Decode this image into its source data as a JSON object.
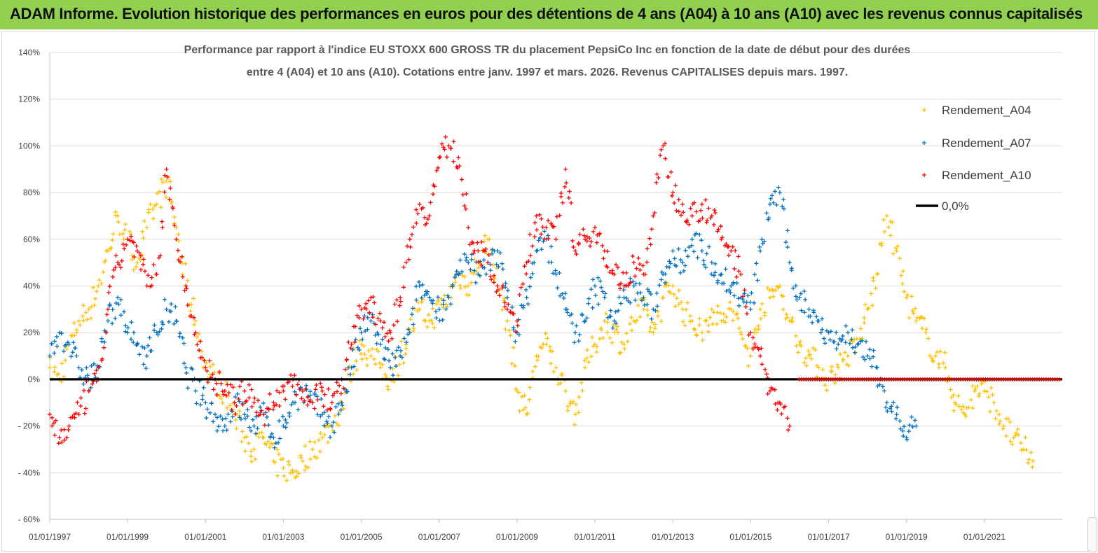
{
  "banner": {
    "title": "ADAM Informe. Evolution historique des performances en euros pour des détentions de 4 ans (A04) à 10 ans (A10) avec les revenus connus capitalisés"
  },
  "chart_data": {
    "type": "scatter",
    "title_line1": "Performance par rapport à l'indice EU STOXX 600 GROSS TR  du placement PepsiCo Inc en fonction de la date de début pour des durées",
    "title_line2": "entre 4 (A04) et 10 ans (A10). Cotations entre janv. 1997 et mars. 2026. Revenus CAPITALISES depuis mars. 1997.",
    "xlabel": "",
    "ylabel": "",
    "xlim": [
      "1997-01-01",
      "2023-01-01"
    ],
    "ylim": [
      -60,
      140
    ],
    "x_tick_labels": [
      "01/01/1997",
      "01/01/1999",
      "01/01/2001",
      "01/01/2003",
      "01/01/2005",
      "01/01/2007",
      "01/01/2009",
      "01/01/2011",
      "01/01/2013",
      "01/01/2015",
      "01/01/2017",
      "01/01/2019",
      "01/01/2021"
    ],
    "y_tick_labels": [
      "- 60%",
      "- 40%",
      "- 20%",
      "0%",
      "20%",
      "40%",
      "60%",
      "80%",
      "100%",
      "120%",
      "140%"
    ],
    "y_ticks": [
      -60,
      -40,
      -20,
      0,
      20,
      40,
      60,
      80,
      100,
      120,
      140
    ],
    "grid": "horizontal",
    "legend_position": "top-right",
    "marker": "+",
    "series": [
      {
        "name": "Rendement_A04",
        "color": "#ffc000",
        "points": [
          [
            "1997-01-01",
            5
          ],
          [
            "1997-04-01",
            0
          ],
          [
            "1997-07-01",
            15
          ],
          [
            "1997-10-01",
            25
          ],
          [
            "1998-01-01",
            30
          ],
          [
            "1998-04-01",
            40
          ],
          [
            "1998-07-01",
            55
          ],
          [
            "1998-10-01",
            70
          ],
          [
            "1999-01-01",
            60
          ],
          [
            "1999-04-01",
            50
          ],
          [
            "1999-07-01",
            65
          ],
          [
            "1999-10-01",
            75
          ],
          [
            "2000-01-01",
            85
          ],
          [
            "2000-04-01",
            65
          ],
          [
            "2000-07-01",
            40
          ],
          [
            "2000-10-01",
            25
          ],
          [
            "2001-01-01",
            5
          ],
          [
            "2001-04-01",
            0
          ],
          [
            "2001-07-01",
            -5
          ],
          [
            "2001-10-01",
            -15
          ],
          [
            "2002-01-01",
            -25
          ],
          [
            "2002-04-01",
            -30
          ],
          [
            "2002-07-01",
            -25
          ],
          [
            "2002-10-01",
            -35
          ],
          [
            "2003-01-01",
            -38
          ],
          [
            "2003-04-01",
            -40
          ],
          [
            "2003-07-01",
            -35
          ],
          [
            "2003-10-01",
            -30
          ],
          [
            "2004-01-01",
            -25
          ],
          [
            "2004-04-01",
            -20
          ],
          [
            "2004-07-01",
            -10
          ],
          [
            "2004-10-01",
            5
          ],
          [
            "2005-01-01",
            15
          ],
          [
            "2005-04-01",
            10
          ],
          [
            "2005-07-01",
            5
          ],
          [
            "2005-10-01",
            0
          ],
          [
            "2006-01-01",
            10
          ],
          [
            "2006-04-01",
            20
          ],
          [
            "2006-07-01",
            30
          ],
          [
            "2006-10-01",
            25
          ],
          [
            "2007-01-01",
            30
          ],
          [
            "2007-04-01",
            35
          ],
          [
            "2007-07-01",
            45
          ],
          [
            "2007-10-01",
            40
          ],
          [
            "2008-01-01",
            50
          ],
          [
            "2008-04-01",
            60
          ],
          [
            "2008-07-01",
            40
          ],
          [
            "2008-10-01",
            25
          ],
          [
            "2009-01-01",
            -5
          ],
          [
            "2009-04-01",
            -15
          ],
          [
            "2009-07-01",
            10
          ],
          [
            "2009-10-01",
            15
          ],
          [
            "2010-01-01",
            5
          ],
          [
            "2010-04-01",
            -5
          ],
          [
            "2010-07-01",
            -15
          ],
          [
            "2010-10-01",
            5
          ],
          [
            "2011-01-01",
            15
          ],
          [
            "2011-04-01",
            25
          ],
          [
            "2011-07-01",
            20
          ],
          [
            "2011-10-01",
            15
          ],
          [
            "2012-01-01",
            25
          ],
          [
            "2012-04-01",
            30
          ],
          [
            "2012-07-01",
            20
          ],
          [
            "2012-10-01",
            35
          ],
          [
            "2013-01-01",
            40
          ],
          [
            "2013-04-01",
            30
          ],
          [
            "2013-07-01",
            25
          ],
          [
            "2013-10-01",
            20
          ],
          [
            "2014-01-01",
            30
          ],
          [
            "2014-04-01",
            25
          ],
          [
            "2014-07-01",
            30
          ],
          [
            "2014-10-01",
            20
          ],
          [
            "2015-01-01",
            10
          ],
          [
            "2015-04-01",
            30
          ],
          [
            "2015-07-01",
            35
          ],
          [
            "2015-10-01",
            40
          ],
          [
            "2016-01-01",
            25
          ],
          [
            "2016-04-01",
            15
          ],
          [
            "2016-07-01",
            10
          ],
          [
            "2016-10-01",
            5
          ],
          [
            "2017-01-01",
            0
          ],
          [
            "2017-04-01",
            5
          ],
          [
            "2017-07-01",
            10
          ],
          [
            "2017-10-01",
            15
          ],
          [
            "2018-01-01",
            30
          ],
          [
            "2018-04-01",
            45
          ],
          [
            "2018-07-01",
            70
          ],
          [
            "2018-10-01",
            55
          ],
          [
            "2019-01-01",
            35
          ],
          [
            "2019-04-01",
            25
          ],
          [
            "2019-07-01",
            20
          ],
          [
            "2019-10-01",
            10
          ],
          [
            "2020-01-01",
            5
          ],
          [
            "2020-04-01",
            -10
          ],
          [
            "2020-07-01",
            -15
          ],
          [
            "2020-10-01",
            -5
          ],
          [
            "2021-01-01",
            -5
          ],
          [
            "2021-04-01",
            -10
          ],
          [
            "2021-07-01",
            -20
          ],
          [
            "2021-10-01",
            -25
          ],
          [
            "2022-01-01",
            -30
          ],
          [
            "2022-04-01",
            -35
          ]
        ]
      },
      {
        "name": "Rendement_A07",
        "color": "#0070c0",
        "points": [
          [
            "1997-01-01",
            10
          ],
          [
            "1997-04-01",
            20
          ],
          [
            "1997-07-01",
            15
          ],
          [
            "1997-10-01",
            5
          ],
          [
            "1998-01-01",
            0
          ],
          [
            "1998-04-01",
            5
          ],
          [
            "1998-07-01",
            25
          ],
          [
            "1998-10-01",
            35
          ],
          [
            "1999-01-01",
            20
          ],
          [
            "1999-04-01",
            15
          ],
          [
            "1999-07-01",
            10
          ],
          [
            "1999-10-01",
            20
          ],
          [
            "2000-01-01",
            30
          ],
          [
            "2000-04-01",
            25
          ],
          [
            "2000-07-01",
            5
          ],
          [
            "2000-10-01",
            -5
          ],
          [
            "2001-01-01",
            -10
          ],
          [
            "2001-04-01",
            -15
          ],
          [
            "2001-07-01",
            -20
          ],
          [
            "2001-10-01",
            -10
          ],
          [
            "2002-01-01",
            -15
          ],
          [
            "2002-04-01",
            -20
          ],
          [
            "2002-07-01",
            -15
          ],
          [
            "2002-10-01",
            -25
          ],
          [
            "2003-01-01",
            -20
          ],
          [
            "2003-04-01",
            -10
          ],
          [
            "2003-07-01",
            -5
          ],
          [
            "2003-10-01",
            -10
          ],
          [
            "2004-01-01",
            -15
          ],
          [
            "2004-04-01",
            -20
          ],
          [
            "2004-07-01",
            -10
          ],
          [
            "2004-10-01",
            5
          ],
          [
            "2005-01-01",
            20
          ],
          [
            "2005-04-01",
            25
          ],
          [
            "2005-07-01",
            15
          ],
          [
            "2005-10-01",
            5
          ],
          [
            "2006-01-01",
            10
          ],
          [
            "2006-04-01",
            20
          ],
          [
            "2006-07-01",
            40
          ],
          [
            "2006-10-01",
            35
          ],
          [
            "2007-01-01",
            30
          ],
          [
            "2007-04-01",
            35
          ],
          [
            "2007-07-01",
            45
          ],
          [
            "2007-10-01",
            50
          ],
          [
            "2008-01-01",
            45
          ],
          [
            "2008-04-01",
            50
          ],
          [
            "2008-07-01",
            55
          ],
          [
            "2008-10-01",
            35
          ],
          [
            "2009-01-01",
            20
          ],
          [
            "2009-04-01",
            35
          ],
          [
            "2009-07-01",
            55
          ],
          [
            "2009-10-01",
            60
          ],
          [
            "2010-01-01",
            45
          ],
          [
            "2010-04-01",
            30
          ],
          [
            "2010-07-01",
            20
          ],
          [
            "2010-10-01",
            25
          ],
          [
            "2011-01-01",
            40
          ],
          [
            "2011-04-01",
            35
          ],
          [
            "2011-07-01",
            25
          ],
          [
            "2011-10-01",
            35
          ],
          [
            "2012-01-01",
            40
          ],
          [
            "2012-04-01",
            35
          ],
          [
            "2012-07-01",
            30
          ],
          [
            "2012-10-01",
            45
          ],
          [
            "2013-01-01",
            55
          ],
          [
            "2013-04-01",
            50
          ],
          [
            "2013-07-01",
            60
          ],
          [
            "2013-10-01",
            55
          ],
          [
            "2014-01-01",
            50
          ],
          [
            "2014-04-01",
            45
          ],
          [
            "2014-07-01",
            40
          ],
          [
            "2014-10-01",
            35
          ],
          [
            "2015-01-01",
            30
          ],
          [
            "2015-04-01",
            55
          ],
          [
            "2015-07-01",
            75
          ],
          [
            "2015-10-01",
            80
          ],
          [
            "2016-01-01",
            50
          ],
          [
            "2016-04-01",
            35
          ],
          [
            "2016-07-01",
            30
          ],
          [
            "2016-10-01",
            25
          ],
          [
            "2017-01-01",
            20
          ],
          [
            "2017-04-01",
            15
          ],
          [
            "2017-07-01",
            20
          ],
          [
            "2017-10-01",
            15
          ],
          [
            "2018-01-01",
            10
          ],
          [
            "2018-04-01",
            5
          ],
          [
            "2018-07-01",
            -10
          ],
          [
            "2018-10-01",
            -15
          ],
          [
            "2019-01-01",
            -25
          ],
          [
            "2019-04-01",
            -20
          ]
        ]
      },
      {
        "name": "Rendement_A10",
        "color": "#ff0000",
        "points": [
          [
            "1997-01-01",
            -15
          ],
          [
            "1997-04-01",
            -25
          ],
          [
            "1997-07-01",
            -20
          ],
          [
            "1997-10-01",
            -15
          ],
          [
            "1998-01-01",
            -5
          ],
          [
            "1998-04-01",
            0
          ],
          [
            "1998-07-01",
            30
          ],
          [
            "1998-10-01",
            50
          ],
          [
            "1999-01-01",
            60
          ],
          [
            "1999-04-01",
            55
          ],
          [
            "1999-07-01",
            40
          ],
          [
            "1999-10-01",
            45
          ],
          [
            "2000-01-01",
            90
          ],
          [
            "2000-04-01",
            60
          ],
          [
            "2000-07-01",
            40
          ],
          [
            "2000-10-01",
            20
          ],
          [
            "2001-01-01",
            5
          ],
          [
            "2001-04-01",
            0
          ],
          [
            "2001-07-01",
            -5
          ],
          [
            "2001-10-01",
            -10
          ],
          [
            "2002-01-01",
            -5
          ],
          [
            "2002-04-01",
            -10
          ],
          [
            "2002-07-01",
            -15
          ],
          [
            "2002-10-01",
            -10
          ],
          [
            "2003-01-01",
            -5
          ],
          [
            "2003-04-01",
            0
          ],
          [
            "2003-07-01",
            -5
          ],
          [
            "2003-10-01",
            -10
          ],
          [
            "2004-01-01",
            -5
          ],
          [
            "2004-04-01",
            -10
          ],
          [
            "2004-07-01",
            0
          ],
          [
            "2004-10-01",
            15
          ],
          [
            "2005-01-01",
            30
          ],
          [
            "2005-04-01",
            35
          ],
          [
            "2005-07-01",
            25
          ],
          [
            "2005-10-01",
            20
          ],
          [
            "2006-01-01",
            35
          ],
          [
            "2006-04-01",
            60
          ],
          [
            "2006-07-01",
            75
          ],
          [
            "2006-10-01",
            70
          ],
          [
            "2007-01-01",
            95
          ],
          [
            "2007-04-01",
            100
          ],
          [
            "2007-07-01",
            95
          ],
          [
            "2007-10-01",
            65
          ],
          [
            "2008-01-01",
            55
          ],
          [
            "2008-04-01",
            50
          ],
          [
            "2008-07-01",
            40
          ],
          [
            "2008-10-01",
            30
          ],
          [
            "2009-01-01",
            25
          ],
          [
            "2009-04-01",
            50
          ],
          [
            "2009-07-01",
            70
          ],
          [
            "2009-10-01",
            65
          ],
          [
            "2010-01-01",
            60
          ],
          [
            "2010-04-01",
            90
          ],
          [
            "2010-07-01",
            55
          ],
          [
            "2010-10-01",
            60
          ],
          [
            "2011-01-01",
            65
          ],
          [
            "2011-04-01",
            55
          ],
          [
            "2011-07-01",
            45
          ],
          [
            "2011-10-01",
            40
          ],
          [
            "2012-01-01",
            50
          ],
          [
            "2012-04-01",
            45
          ],
          [
            "2012-07-01",
            70
          ],
          [
            "2012-10-01",
            100
          ],
          [
            "2013-01-01",
            80
          ],
          [
            "2013-04-01",
            75
          ],
          [
            "2013-07-01",
            70
          ],
          [
            "2013-10-01",
            75
          ],
          [
            "2014-01-01",
            70
          ],
          [
            "2014-04-01",
            60
          ],
          [
            "2014-07-01",
            55
          ],
          [
            "2014-10-01",
            45
          ],
          [
            "2015-01-01",
            20
          ],
          [
            "2015-04-01",
            10
          ],
          [
            "2015-07-01",
            -5
          ],
          [
            "2015-10-01",
            -10
          ],
          [
            "2016-01-01",
            -20
          ]
        ]
      }
    ],
    "zero_line": {
      "name": "0,0%",
      "color": "#000000",
      "value": 0
    },
    "a10_zero_run": {
      "x_start": "2016-04-01",
      "x_end": "2022-12-20",
      "value": 0
    }
  }
}
